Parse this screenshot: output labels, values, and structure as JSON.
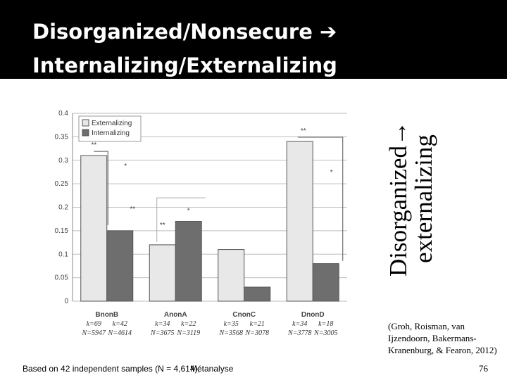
{
  "title": {
    "line1": "Disorganized/Nonsecure  ➔",
    "line2": "Internalizing/Externalizing"
  },
  "side_label": {
    "line1": "Disorganized→",
    "line2": "externalizing"
  },
  "citation": "(Groh, Roisman, van Ijzendoorn, Bakermans-Kranenburg, & Fearon, 2012)",
  "page_number": "76",
  "footnote": {
    "text": "Based on 42 independent samples (N = 4,614),",
    "overlap": "Métanalyse"
  },
  "colors": {
    "band": "#000000",
    "externalizing": "#e8e8e8",
    "internalizing": "#6e6e6e"
  },
  "chart_data": {
    "type": "bar",
    "ylim": [
      0,
      0.4
    ],
    "yticks": [
      "0",
      "0.05",
      "0.1",
      "0.15",
      "0.2",
      "0.25",
      "0.3",
      "0.35",
      "0.4"
    ],
    "legend_position": "top-left",
    "categories": [
      "BnonB",
      "AnonA",
      "CnonC",
      "DnonD"
    ],
    "category_stats": [
      [
        "k=69",
        "k=42",
        "N=5947",
        "N=4614"
      ],
      [
        "k=34",
        "k=22",
        "N=3675",
        "N=3119"
      ],
      [
        "k=35",
        "k=21",
        "N=3568",
        "N=3078"
      ],
      [
        "k=34",
        "k=18",
        "N=3778",
        "N=3005"
      ]
    ],
    "series": [
      {
        "name": "Externalizing",
        "values": [
          0.31,
          0.12,
          0.11,
          0.34
        ]
      },
      {
        "name": "Internalizing",
        "values": [
          0.15,
          0.17,
          0.03,
          0.08
        ]
      }
    ],
    "annotations": [
      {
        "text": "**",
        "category": 0,
        "series": 0
      },
      {
        "text": "**",
        "category": 0,
        "series": 1
      },
      {
        "text": "*",
        "category": 0,
        "series": 0
      },
      {
        "text": "**",
        "category": 1,
        "series": 0
      },
      {
        "text": "*",
        "category": 1,
        "series": 1
      },
      {
        "text": "**",
        "category": 3,
        "series": 0
      },
      {
        "text": "*",
        "category": 3,
        "series": 0
      }
    ]
  }
}
